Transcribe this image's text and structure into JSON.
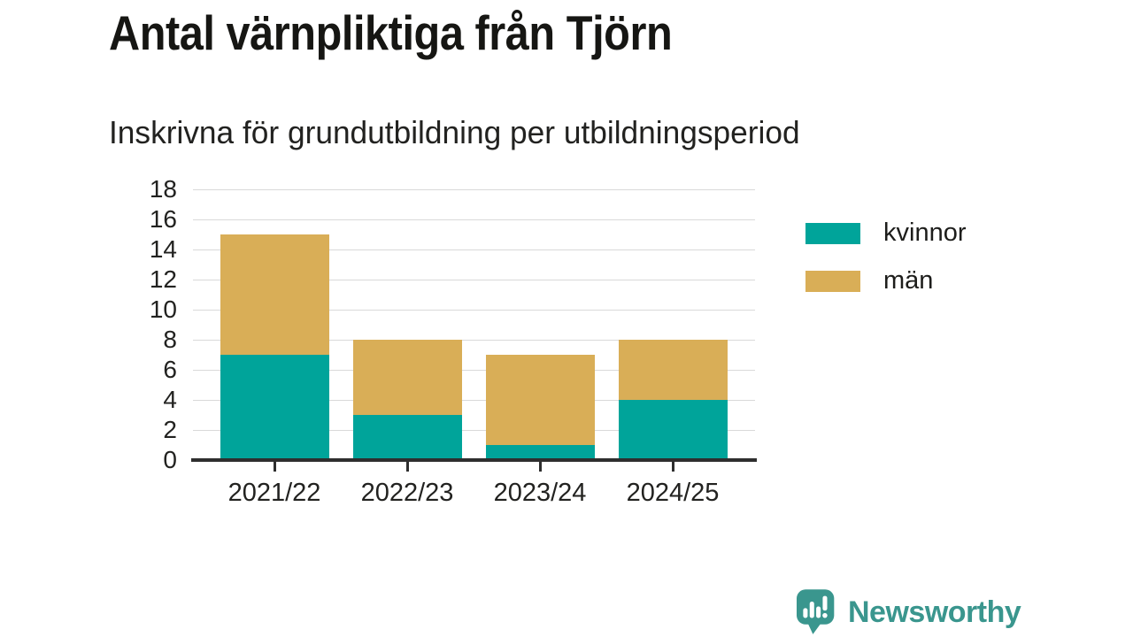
{
  "header": {
    "title": "Antal värnpliktiga från Tjörn",
    "subtitle": "Inskrivna för grundutbildning per utbildningsperiod"
  },
  "chart_data": {
    "type": "bar",
    "stacked": true,
    "title": "Antal värnpliktiga från Tjörn",
    "subtitle": "Inskrivna för grundutbildning per utbildningsperiod",
    "categories": [
      "2021/22",
      "2022/23",
      "2023/24",
      "2024/25"
    ],
    "series": [
      {
        "name": "kvinnor",
        "color": "#00a49a",
        "values": [
          7,
          3,
          1,
          4
        ]
      },
      {
        "name": "män",
        "color": "#d9ae57",
        "values": [
          8,
          5,
          6,
          4
        ]
      }
    ],
    "stack_totals": [
      15,
      8,
      7,
      8
    ],
    "xlabel": "",
    "ylabel": "",
    "ylim": [
      0,
      18
    ],
    "yticks": [
      0,
      2,
      4,
      6,
      8,
      10,
      12,
      14,
      16,
      18
    ],
    "grid": "horizontal",
    "legend_position": "right"
  },
  "legend": {
    "items": [
      {
        "label": "kvinnor",
        "color": "#00a49a"
      },
      {
        "label": "män",
        "color": "#d9ae57"
      }
    ]
  },
  "footer": {
    "brand": "Newsworthy"
  },
  "colors": {
    "teal": "#00a49a",
    "gold": "#d9ae57",
    "axis": "#2e2e2e",
    "grid": "#d9d9d9",
    "text": "#222220",
    "brand": "#3a968e"
  }
}
